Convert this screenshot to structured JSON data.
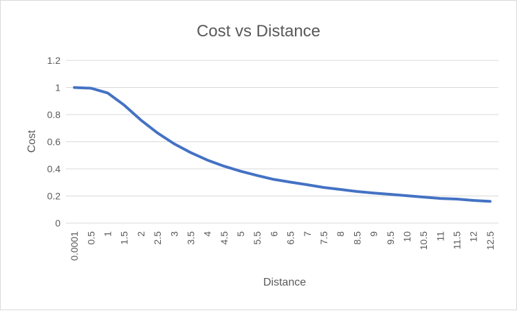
{
  "chart_data": {
    "type": "line",
    "title": "Cost vs Distance",
    "xlabel": "Distance",
    "ylabel": "Cost",
    "categories": [
      "0.0001",
      "0.5",
      "1",
      "1.5",
      "2",
      "2.5",
      "3",
      "3.5",
      "4",
      "4.5",
      "5",
      "5.5",
      "6",
      "6.5",
      "7",
      "7.5",
      "8",
      "8.5",
      "9",
      "9.5",
      "10",
      "10.5",
      "11",
      "11.5",
      "12",
      "12.5"
    ],
    "y_ticks": [
      "0",
      "0.2",
      "0.4",
      "0.6",
      "0.8",
      "1",
      "1.2"
    ],
    "ylim": [
      0,
      1.2
    ],
    "grid": true,
    "legend": "none",
    "series": [
      {
        "color": "#4472c4",
        "values": [
          1.0,
          0.995,
          0.96,
          0.87,
          0.76,
          0.665,
          0.585,
          0.52,
          0.465,
          0.42,
          0.383,
          0.351,
          0.322,
          0.302,
          0.283,
          0.263,
          0.248,
          0.233,
          0.222,
          0.212,
          0.202,
          0.192,
          0.182,
          0.177,
          0.167,
          0.16
        ]
      }
    ]
  }
}
